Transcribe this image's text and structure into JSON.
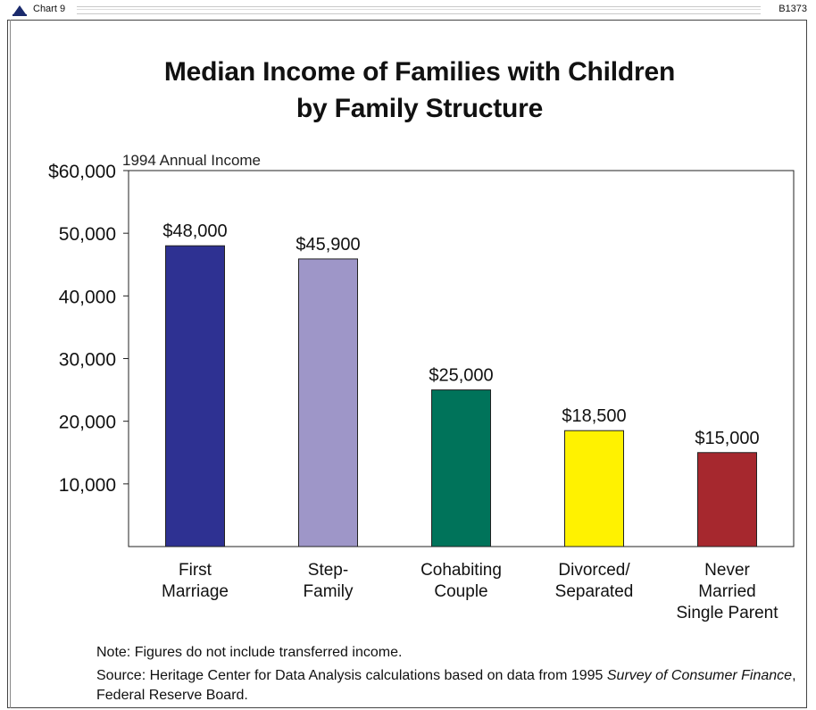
{
  "header": {
    "label": "Chart 9",
    "code": "B1373"
  },
  "chart_data": {
    "type": "bar",
    "title": [
      "Median Income of Families with Children",
      "by Family Structure"
    ],
    "ylabel": "1994 Annual Income",
    "xlabel": "",
    "categories": [
      [
        "First",
        "Marriage"
      ],
      [
        "Step-",
        "Family"
      ],
      [
        "Cohabiting",
        "Couple"
      ],
      [
        "Divorced/",
        "Separated"
      ],
      [
        "Never",
        "Married",
        "Single Parent"
      ]
    ],
    "values": [
      48000,
      45900,
      25000,
      18500,
      15000
    ],
    "value_labels": [
      "$48,000",
      "$45,900",
      "$25,000",
      "$18,500",
      "$15,000"
    ],
    "colors": [
      "#2e3192",
      "#9e96c8",
      "#00735a",
      "#fff200",
      "#a6282e"
    ],
    "ylim": [
      0,
      60000
    ],
    "yticks": [
      10000,
      20000,
      30000,
      40000,
      50000,
      60000
    ],
    "ytick_labels": [
      "10,000",
      "20,000",
      "30,000",
      "40,000",
      "50,000",
      "$60,000"
    ],
    "grid": false,
    "legend": "none"
  },
  "footer": {
    "note_label": "Note:",
    "note_text": " Figures do not include transferred income.",
    "source_label": "Source:",
    "source_text_1": " Heritage Center for Data Analysis calculations based on data from 1995 ",
    "source_italic": "Survey of Consumer Finance",
    "source_text_2": ", Federal Reserve Board."
  }
}
